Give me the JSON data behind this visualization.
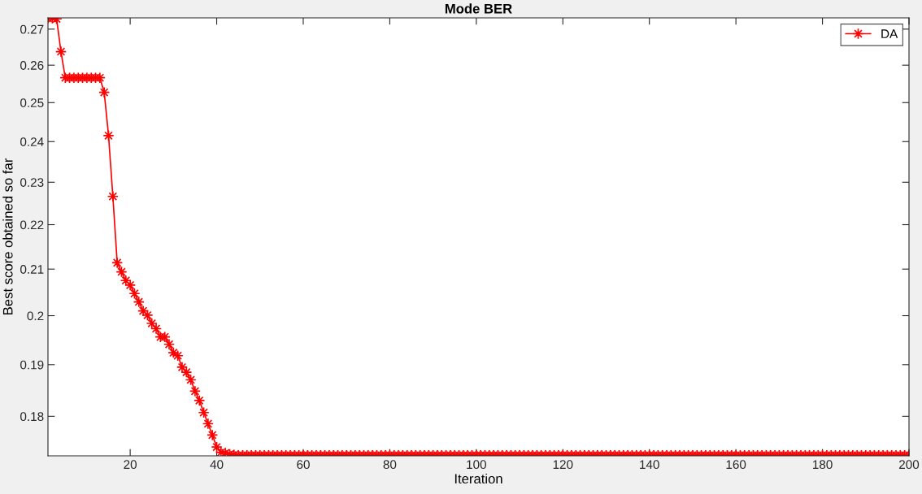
{
  "chart_data": {
    "type": "line",
    "title": "Mode BER",
    "xlabel": "Iteration",
    "ylabel": "Best score obtained so far",
    "x": [
      1,
      2,
      3,
      4,
      5,
      6,
      7,
      8,
      9,
      10,
      11,
      12,
      13,
      14,
      15,
      16,
      17,
      18,
      19,
      20,
      21,
      22,
      23,
      24,
      25,
      26,
      27,
      28,
      29,
      30,
      31,
      32,
      33,
      34,
      35,
      36,
      37,
      38,
      39,
      40,
      41,
      42,
      43,
      44,
      45,
      46,
      47,
      48,
      49,
      50,
      51,
      52,
      53,
      54,
      55,
      56,
      57,
      58,
      59,
      60,
      61,
      62,
      63,
      64,
      65,
      66,
      67,
      68,
      69,
      70,
      71,
      72,
      73,
      74,
      75,
      76,
      77,
      78,
      79,
      80,
      81,
      82,
      83,
      84,
      85,
      86,
      87,
      88,
      89,
      90,
      91,
      92,
      93,
      94,
      95,
      96,
      97,
      98,
      99,
      100,
      101,
      102,
      103,
      104,
      105,
      106,
      107,
      108,
      109,
      110,
      111,
      112,
      113,
      114,
      115,
      116,
      117,
      118,
      119,
      120,
      121,
      122,
      123,
      124,
      125,
      126,
      127,
      128,
      129,
      130,
      131,
      132,
      133,
      134,
      135,
      136,
      137,
      138,
      139,
      140,
      141,
      142,
      143,
      144,
      145,
      146,
      147,
      148,
      149,
      150,
      151,
      152,
      153,
      154,
      155,
      156,
      157,
      158,
      159,
      160,
      161,
      162,
      163,
      164,
      165,
      166,
      167,
      168,
      169,
      170,
      171,
      172,
      173,
      174,
      175,
      176,
      177,
      178,
      179,
      180,
      181,
      182,
      183,
      184,
      185,
      186,
      187,
      188,
      189,
      190,
      191,
      192,
      193,
      194,
      195,
      196,
      197,
      198,
      199,
      200
    ],
    "series": [
      {
        "name": "DA",
        "color": "#ff0000",
        "values": [
          0.2731,
          0.2731,
          0.2729,
          0.2637,
          0.2566,
          0.2566,
          0.2566,
          0.2566,
          0.2566,
          0.2566,
          0.2566,
          0.2566,
          0.2566,
          0.2527,
          0.2415,
          0.2266,
          0.2114,
          0.2094,
          0.2075,
          0.2065,
          0.2047,
          0.2029,
          0.201,
          0.2001,
          0.1984,
          0.1973,
          0.1956,
          0.1956,
          0.1941,
          0.1924,
          0.1918,
          0.1895,
          0.1885,
          0.187,
          0.1848,
          0.183,
          0.1807,
          0.1786,
          0.1765,
          0.1743,
          0.1733,
          0.1732,
          0.173,
          0.1729,
          0.1728,
          0.1728,
          0.1728,
          0.1728,
          0.1728,
          0.1728,
          0.1728,
          0.1728,
          0.1728,
          0.1728,
          0.1728,
          0.1728,
          0.1728,
          0.1728,
          0.1728,
          0.1728,
          0.1728,
          0.1728,
          0.1728,
          0.1728,
          0.1728,
          0.1728,
          0.1728,
          0.1728,
          0.1728,
          0.1728,
          0.1728,
          0.1728,
          0.1728,
          0.1728,
          0.1728,
          0.1728,
          0.1728,
          0.1728,
          0.1728,
          0.1728,
          0.1728,
          0.1728,
          0.1728,
          0.1728,
          0.1728,
          0.1728,
          0.1728,
          0.1728,
          0.1728,
          0.1728,
          0.1728,
          0.1728,
          0.1728,
          0.1728,
          0.1728,
          0.1728,
          0.1728,
          0.1728,
          0.1728,
          0.1728,
          0.1728,
          0.1728,
          0.1728,
          0.1728,
          0.1728,
          0.1728,
          0.1728,
          0.1728,
          0.1728,
          0.1728,
          0.1728,
          0.1728,
          0.1728,
          0.1728,
          0.1728,
          0.1728,
          0.1728,
          0.1728,
          0.1728,
          0.1728,
          0.1728,
          0.1728,
          0.1728,
          0.1728,
          0.1728,
          0.1728,
          0.1728,
          0.1728,
          0.1728,
          0.1728,
          0.1728,
          0.1728,
          0.1728,
          0.1728,
          0.1728,
          0.1728,
          0.1728,
          0.1728,
          0.1728,
          0.1728,
          0.1728,
          0.1728,
          0.1728,
          0.1728,
          0.1728,
          0.1728,
          0.1728,
          0.1728,
          0.1728,
          0.1728,
          0.1728,
          0.1728,
          0.1728,
          0.1728,
          0.1728,
          0.1728,
          0.1728,
          0.1728,
          0.1728,
          0.1728,
          0.1728,
          0.1728,
          0.1728,
          0.1728,
          0.1728,
          0.1728,
          0.1728,
          0.1728,
          0.1728,
          0.1728,
          0.1728,
          0.1728,
          0.1728,
          0.1728,
          0.1728,
          0.1728,
          0.1728,
          0.1728,
          0.1728,
          0.1728,
          0.1728,
          0.1728,
          0.1728,
          0.1728,
          0.1728,
          0.1728,
          0.1728,
          0.1728,
          0.1728,
          0.1728,
          0.1728,
          0.1728,
          0.1728,
          0.1728,
          0.1728,
          0.1728,
          0.1728,
          0.1728,
          0.1728,
          0.1728
        ]
      }
    ],
    "xlim": [
      1,
      200
    ],
    "xticks": [
      20,
      40,
      60,
      80,
      100,
      120,
      140,
      160,
      180,
      200
    ],
    "ylim": [
      0.1727,
      0.2732
    ],
    "yticks": [
      0.18,
      0.19,
      0.2,
      0.21,
      0.22,
      0.23,
      0.24,
      0.25,
      0.26,
      0.27
    ],
    "log": "y",
    "grid": false,
    "legend": "top right",
    "marker": "star",
    "line_style": "solid"
  }
}
